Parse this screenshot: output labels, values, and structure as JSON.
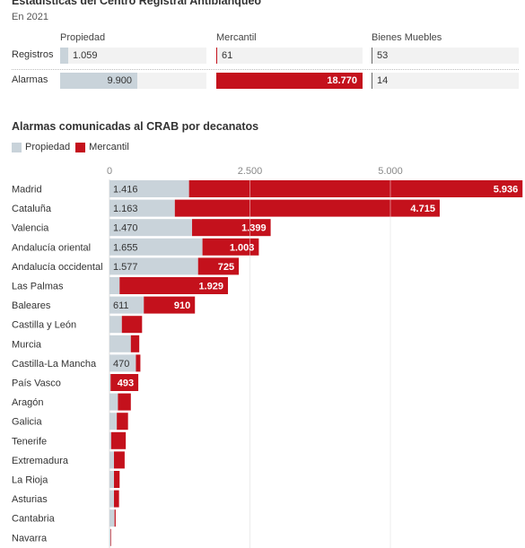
{
  "header": {
    "title": "Estadísticas del Centro Registral Antiblanqueo",
    "subtitle": "En 2021"
  },
  "summary_table": {
    "columns": [
      "Propiedad",
      "Mercantil",
      "Bienes Muebles"
    ],
    "rows": [
      {
        "label": "Registros",
        "values": [
          1059,
          61,
          53
        ],
        "display": [
          "1.059",
          "61",
          "53"
        ]
      },
      {
        "label": "Alarmas",
        "values": [
          9900,
          18770,
          14
        ],
        "display": [
          "9.900",
          "18.770",
          "14"
        ]
      }
    ],
    "max_value": 18770
  },
  "colors": {
    "propiedad": "#c9d3da",
    "mercantil": "#c4111c",
    "background_cell": "#f2f2f2"
  },
  "chart_data": {
    "type": "bar",
    "orientation": "horizontal",
    "stacked": true,
    "title": "Alarmas comunicadas al CRAB por decanatos",
    "legend": [
      "Propiedad",
      "Mercantil"
    ],
    "legend_position": "top-left",
    "xlim": [
      0,
      8500
    ],
    "x_ticks": [
      0,
      2500,
      5000
    ],
    "x_tick_labels": [
      "0",
      "2.500",
      "5.000"
    ],
    "grid": true,
    "categories": [
      "Madrid",
      "Cataluña",
      "Valencia",
      "Andalucía oriental",
      "Andalucía occidental",
      "Las Palmas",
      "Baleares",
      "Castilla y León",
      "Murcia",
      "Castilla-La Mancha",
      "País Vasco",
      "Aragón",
      "Galicia",
      "Tenerife",
      "Extremadura",
      "La Rioja",
      "Asturias",
      "Cantabria",
      "Navarra"
    ],
    "series": [
      {
        "name": "Propiedad",
        "values": [
          1416,
          1163,
          1470,
          1655,
          1577,
          180,
          611,
          220,
          380,
          470,
          20,
          150,
          130,
          30,
          80,
          80,
          80,
          90,
          20
        ],
        "labels": [
          "1.416",
          "1.163",
          "1.470",
          "1.655",
          "1.577",
          "",
          "611",
          "",
          "",
          "470",
          "",
          "",
          "",
          "",
          "",
          "",
          "",
          "",
          ""
        ]
      },
      {
        "name": "Mercantil",
        "values": [
          5936,
          4715,
          1399,
          1003,
          725,
          1929,
          910,
          360,
          150,
          80,
          493,
          230,
          200,
          260,
          190,
          100,
          90,
          20,
          10
        ],
        "labels": [
          "5.936",
          "4.715",
          "1.399",
          "1.003",
          "725",
          "1.929",
          "910",
          "",
          "",
          "",
          "493",
          "",
          "",
          "",
          "",
          "",
          "",
          "",
          ""
        ]
      }
    ]
  }
}
